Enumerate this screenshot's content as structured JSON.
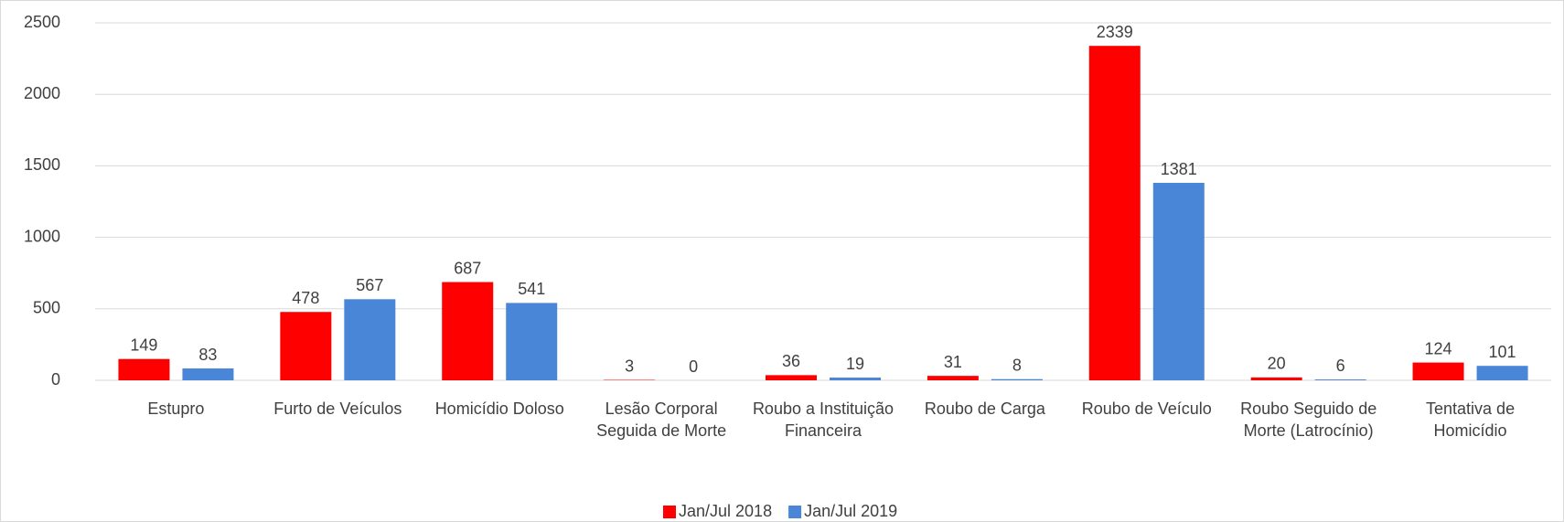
{
  "chart_data": {
    "type": "bar",
    "categories": [
      "Estupro",
      "Furto de Veículos",
      "Homicídio Doloso",
      "Lesão Corporal Seguida de Morte",
      "Roubo a Instituição Financeira",
      "Roubo de Carga",
      "Roubo de Veículo",
      "Roubo Seguido de Morte (Latrocínio)",
      "Tentativa de Homicídio"
    ],
    "series": [
      {
        "name": "Jan/Jul 2018",
        "color": "#ff0000",
        "values": [
          149,
          478,
          687,
          3,
          36,
          31,
          2339,
          20,
          124
        ]
      },
      {
        "name": "Jan/Jul 2019",
        "color": "#4a86d8",
        "values": [
          83,
          567,
          541,
          0,
          19,
          8,
          1381,
          6,
          101
        ]
      }
    ],
    "ylim": [
      0,
      2500
    ],
    "yticks": [
      0,
      500,
      1000,
      1500,
      2000,
      2500
    ],
    "grid": true,
    "legend": "bottom"
  }
}
